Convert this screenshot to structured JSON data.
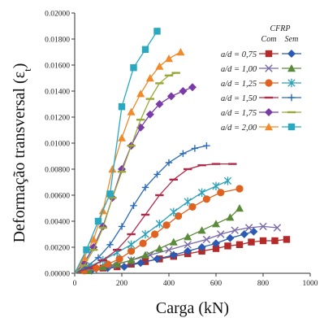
{
  "chart_data": {
    "type": "line",
    "xlabel": "Carga (kN)",
    "ylabel": "Deformação transversal (ε",
    "ylabel_sub": "t",
    "ylabel_close": ")",
    "xlim": [
      0,
      1000
    ],
    "ylim": [
      0,
      0.02
    ],
    "x_ticks": [
      0,
      200,
      400,
      600,
      800,
      1000
    ],
    "y_ticks": [
      0,
      0.002,
      0.004,
      0.006,
      0.008,
      0.01,
      0.012,
      0.014,
      0.016,
      0.018,
      0.02
    ],
    "x_tick_labels": [
      "0",
      "200",
      "400",
      "600",
      "800",
      "1000"
    ],
    "y_tick_labels": [
      "0.00000",
      "0.00200",
      "0.00400",
      "0.00600",
      "0.00800",
      "0.01000",
      "0.01200",
      "0.01400",
      "0.01600",
      "0.01800",
      "0.02000"
    ],
    "grid": false,
    "legend": {
      "placement": "top-right",
      "title": "CFRP",
      "col_com": "Com",
      "col_sem": "Sem",
      "rows": [
        "a/d = 0,75",
        "a/d = 1,00",
        "a/d = 1,25",
        "a/d = 1,50",
        "a/d = 1,75",
        "a/d = 2,00"
      ]
    },
    "series": [
      {
        "name": "a/d = 0,75 Com",
        "marker": "square",
        "color": "#b22a2a",
        "points": [
          [
            0,
            0
          ],
          [
            60,
            0.0002
          ],
          [
            120,
            0.0004
          ],
          [
            180,
            0.0005
          ],
          [
            240,
            0.0007
          ],
          [
            300,
            0.0009
          ],
          [
            360,
            0.0011
          ],
          [
            420,
            0.0013
          ],
          [
            480,
            0.0015
          ],
          [
            540,
            0.0017
          ],
          [
            600,
            0.0019
          ],
          [
            650,
            0.0021
          ],
          [
            700,
            0.0022
          ],
          [
            750,
            0.0024
          ],
          [
            800,
            0.0025
          ],
          [
            850,
            0.0025
          ],
          [
            900,
            0.0026
          ]
        ]
      },
      {
        "name": "a/d = 0,75 Sem",
        "marker": "diamond",
        "color": "#2a5ab4",
        "points": [
          [
            0,
            0
          ],
          [
            70,
            0.0002
          ],
          [
            140,
            0.0004
          ],
          [
            210,
            0.0005
          ],
          [
            280,
            0.0008
          ],
          [
            350,
            0.0011
          ],
          [
            420,
            0.0014
          ],
          [
            480,
            0.0017
          ],
          [
            540,
            0.002
          ],
          [
            600,
            0.0023
          ],
          [
            660,
            0.0027
          ],
          [
            720,
            0.003
          ],
          [
            760,
            0.0032
          ]
        ]
      },
      {
        "name": "a/d = 1,00 Com",
        "marker": "x",
        "color": "#7a6aa8",
        "points": [
          [
            0,
            0
          ],
          [
            80,
            0.0003
          ],
          [
            160,
            0.0006
          ],
          [
            240,
            0.001
          ],
          [
            320,
            0.0014
          ],
          [
            400,
            0.0018
          ],
          [
            480,
            0.0022
          ],
          [
            560,
            0.0026
          ],
          [
            620,
            0.003
          ],
          [
            680,
            0.0033
          ],
          [
            740,
            0.0035
          ],
          [
            800,
            0.0036
          ],
          [
            860,
            0.0035
          ]
        ]
      },
      {
        "name": "a/d = 1,00 Sem",
        "marker": "triangle",
        "color": "#5a8a3a",
        "points": [
          [
            0,
            0
          ],
          [
            60,
            0.0002
          ],
          [
            120,
            0.0005
          ],
          [
            180,
            0.0007
          ],
          [
            240,
            0.001
          ],
          [
            300,
            0.0014
          ],
          [
            360,
            0.0019
          ],
          [
            420,
            0.0024
          ],
          [
            480,
            0.0028
          ],
          [
            540,
            0.0033
          ],
          [
            600,
            0.0038
          ],
          [
            660,
            0.0043
          ],
          [
            700,
            0.005
          ]
        ]
      },
      {
        "name": "a/d = 1,25 Com",
        "marker": "circle",
        "color": "#e0621e",
        "points": [
          [
            0,
            0
          ],
          [
            40,
            0.0002
          ],
          [
            90,
            0.0004
          ],
          [
            140,
            0.0007
          ],
          [
            190,
            0.0011
          ],
          [
            240,
            0.0017
          ],
          [
            290,
            0.0023
          ],
          [
            340,
            0.003
          ],
          [
            390,
            0.0037
          ],
          [
            440,
            0.0044
          ],
          [
            500,
            0.0051
          ],
          [
            560,
            0.0057
          ],
          [
            620,
            0.0062
          ],
          [
            700,
            0.0065
          ]
        ]
      },
      {
        "name": "a/d = 1,25 Sem",
        "marker": "asterisk",
        "color": "#2aa0b8",
        "points": [
          [
            0,
            0
          ],
          [
            60,
            0.0005
          ],
          [
            120,
            0.001
          ],
          [
            180,
            0.0016
          ],
          [
            240,
            0.0022
          ],
          [
            300,
            0.003
          ],
          [
            360,
            0.0038
          ],
          [
            420,
            0.0047
          ],
          [
            480,
            0.0055
          ],
          [
            540,
            0.0062
          ],
          [
            600,
            0.0067
          ],
          [
            650,
            0.0071
          ]
        ]
      },
      {
        "name": "a/d = 1,50 Com",
        "marker": "dash",
        "color": "#b22a4a",
        "points": [
          [
            0,
            0
          ],
          [
            60,
            0.0004
          ],
          [
            120,
            0.001
          ],
          [
            180,
            0.0018
          ],
          [
            240,
            0.003
          ],
          [
            300,
            0.0045
          ],
          [
            360,
            0.006
          ],
          [
            420,
            0.0072
          ],
          [
            480,
            0.008
          ],
          [
            540,
            0.0083
          ],
          [
            600,
            0.0084
          ],
          [
            670,
            0.0084
          ]
        ]
      },
      {
        "name": "a/d = 1,50 Sem",
        "marker": "plus",
        "color": "#2a6ab8",
        "points": [
          [
            0,
            0
          ],
          [
            50,
            0.0005
          ],
          [
            100,
            0.0012
          ],
          [
            150,
            0.0022
          ],
          [
            200,
            0.0036
          ],
          [
            250,
            0.0052
          ],
          [
            300,
            0.0066
          ],
          [
            350,
            0.0076
          ],
          [
            400,
            0.0085
          ],
          [
            460,
            0.0092
          ],
          [
            510,
            0.0096
          ],
          [
            560,
            0.0098
          ]
        ]
      },
      {
        "name": "a/d = 1,75 Com",
        "marker": "diamond",
        "color": "#7a3aa8",
        "points": [
          [
            0,
            0
          ],
          [
            40,
            0.0008
          ],
          [
            80,
            0.002
          ],
          [
            120,
            0.0036
          ],
          [
            160,
            0.0058
          ],
          [
            200,
            0.008
          ],
          [
            240,
            0.0098
          ],
          [
            280,
            0.0112
          ],
          [
            320,
            0.0122
          ],
          [
            360,
            0.013
          ],
          [
            410,
            0.0136
          ],
          [
            460,
            0.014
          ],
          [
            500,
            0.0143
          ]
        ]
      },
      {
        "name": "a/d = 1,75 Sem",
        "marker": "dash",
        "color": "#9aa838",
        "points": [
          [
            0,
            0
          ],
          [
            40,
            0.0006
          ],
          [
            80,
            0.0018
          ],
          [
            120,
            0.0035
          ],
          [
            160,
            0.0058
          ],
          [
            200,
            0.0078
          ],
          [
            240,
            0.0098
          ],
          [
            280,
            0.0118
          ],
          [
            320,
            0.0134
          ],
          [
            360,
            0.0146
          ],
          [
            400,
            0.0152
          ],
          [
            430,
            0.0154
          ]
        ]
      },
      {
        "name": "a/d = 2,00 Com",
        "marker": "triangle",
        "color": "#f08a2a",
        "points": [
          [
            0,
            0
          ],
          [
            40,
            0.0012
          ],
          [
            80,
            0.0026
          ],
          [
            120,
            0.0048
          ],
          [
            160,
            0.008
          ],
          [
            200,
            0.0104
          ],
          [
            240,
            0.0124
          ],
          [
            280,
            0.0138
          ],
          [
            320,
            0.015
          ],
          [
            360,
            0.0159
          ],
          [
            400,
            0.0165
          ],
          [
            450,
            0.017
          ]
        ]
      },
      {
        "name": "a/d = 2,00 Sem",
        "marker": "square",
        "color": "#2aa8c0",
        "points": [
          [
            0,
            0
          ],
          [
            50,
            0.0018
          ],
          [
            100,
            0.004
          ],
          [
            150,
            0.0061
          ],
          [
            200,
            0.0128
          ],
          [
            250,
            0.0158
          ],
          [
            300,
            0.0172
          ],
          [
            350,
            0.0186
          ]
        ]
      }
    ]
  }
}
